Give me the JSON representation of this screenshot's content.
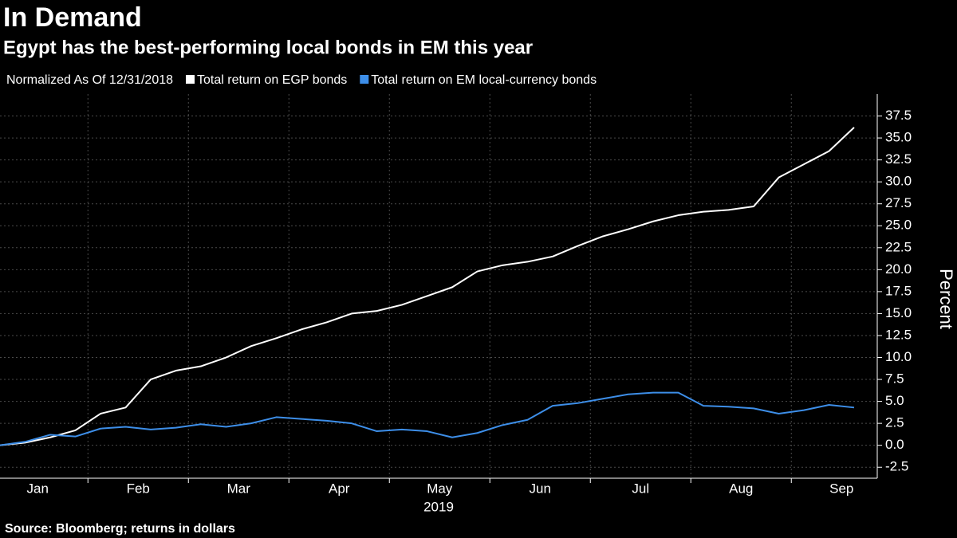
{
  "chart_data": {
    "type": "line",
    "title": "In Demand",
    "subtitle": "Egypt has the best-performing local bonds in EM this year",
    "legend_title": "Normalized As Of 12/31/2018",
    "xlabel": "2019",
    "ylabel": "Percent",
    "source": "Source: Bloomberg; returns in dollars",
    "categories": [
      null,
      "Jan",
      null,
      null,
      null,
      "Feb",
      null,
      null,
      null,
      "Mar",
      null,
      null,
      null,
      "Apr",
      null,
      null,
      null,
      "May",
      null,
      null,
      null,
      "Jun",
      null,
      null,
      null,
      "Jul",
      null,
      null,
      null,
      "Aug",
      null,
      null,
      null,
      "Sep",
      null
    ],
    "series": [
      {
        "name": "Total return on EGP bonds",
        "color": "#ffffff",
        "values": [
          0,
          0.3,
          0.9,
          1.7,
          3.6,
          4.3,
          7.5,
          8.5,
          9.0,
          10.0,
          11.3,
          12.2,
          13.2,
          14.0,
          15.0,
          15.3,
          16.0,
          17.0,
          18.0,
          19.8,
          20.5,
          20.9,
          21.5,
          22.7,
          23.8,
          24.6,
          25.5,
          26.2,
          26.6,
          26.8,
          27.2,
          30.5,
          32.0,
          33.5,
          36.2
        ]
      },
      {
        "name": "Total return on EM local-currency bonds",
        "color": "#3d8ee8",
        "values": [
          0,
          0.4,
          1.2,
          1.0,
          1.9,
          2.1,
          1.8,
          2.0,
          2.4,
          2.1,
          2.5,
          3.2,
          3.0,
          2.8,
          2.5,
          1.6,
          1.8,
          1.6,
          0.9,
          1.4,
          2.3,
          2.9,
          4.5,
          4.8,
          5.3,
          5.8,
          6.0,
          6.0,
          4.5,
          4.4,
          4.2,
          3.6,
          4.0,
          4.6,
          4.3
        ]
      }
    ],
    "ylim": [
      -3.75,
      40
    ],
    "yticks": [
      -2.5,
      {
        "value": 0,
        "label": "0.0"
      },
      2.5,
      {
        "value": 5,
        "label": "5.0"
      },
      7.5,
      {
        "value": 10,
        "label": "10.0"
      },
      12.5,
      {
        "value": 15,
        "label": "15.0"
      },
      17.5,
      {
        "value": 20,
        "label": "20.0"
      },
      22.5,
      {
        "value": 25,
        "label": "25.0"
      },
      27.5,
      {
        "value": 30,
        "label": "30.0"
      },
      32.5,
      {
        "value": 35,
        "label": "35.0"
      },
      37.5
    ],
    "grid": true,
    "y_axis_side": "right"
  }
}
